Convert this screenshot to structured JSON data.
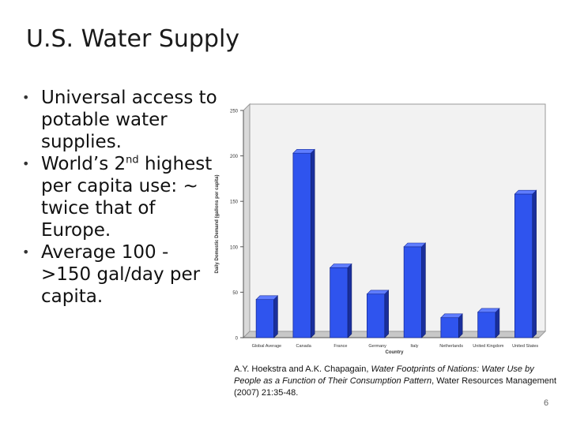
{
  "slide": {
    "title": "U.S. Water Supply",
    "bullet1": "Universal access to potable water supplies.",
    "bullet2_pre": "World’s 2",
    "bullet2_sup": "nd",
    "bullet2_post": " highest per capita use: ~ twice that of Europe.",
    "bullet3": "Average 100 - >150 gal/day per capita.",
    "bullet_marker": "•",
    "caption_pre": "A.Y. Hoekstra and A.K. Chapagain, ",
    "caption_italic": "Water Footprints of Nations: Water Use by People as a Function of Their Consumption Pattern",
    "caption_post": ", Water Resources Management (2007) 21:35-48.",
    "page_number": "6"
  },
  "chart_data": {
    "type": "bar",
    "categories": [
      "Global Average",
      "Canada",
      "France",
      "Germany",
      "Italy",
      "Netherlands",
      "United Kingdom",
      "United States"
    ],
    "values": [
      42,
      203,
      77,
      48,
      100,
      22,
      28,
      158
    ],
    "xlabel": "Country",
    "ylabel": "Daily Domestic Demand (gallons per capita)",
    "ylim": [
      0,
      250
    ],
    "yticks": [
      0,
      50,
      100,
      150,
      200,
      250
    ],
    "grid": false,
    "bar_color": "#2f54ee",
    "bar_top_color": "#5f7dff",
    "bar_side_color": "#1a2f9c",
    "wall_color": "#f2f2f2"
  }
}
